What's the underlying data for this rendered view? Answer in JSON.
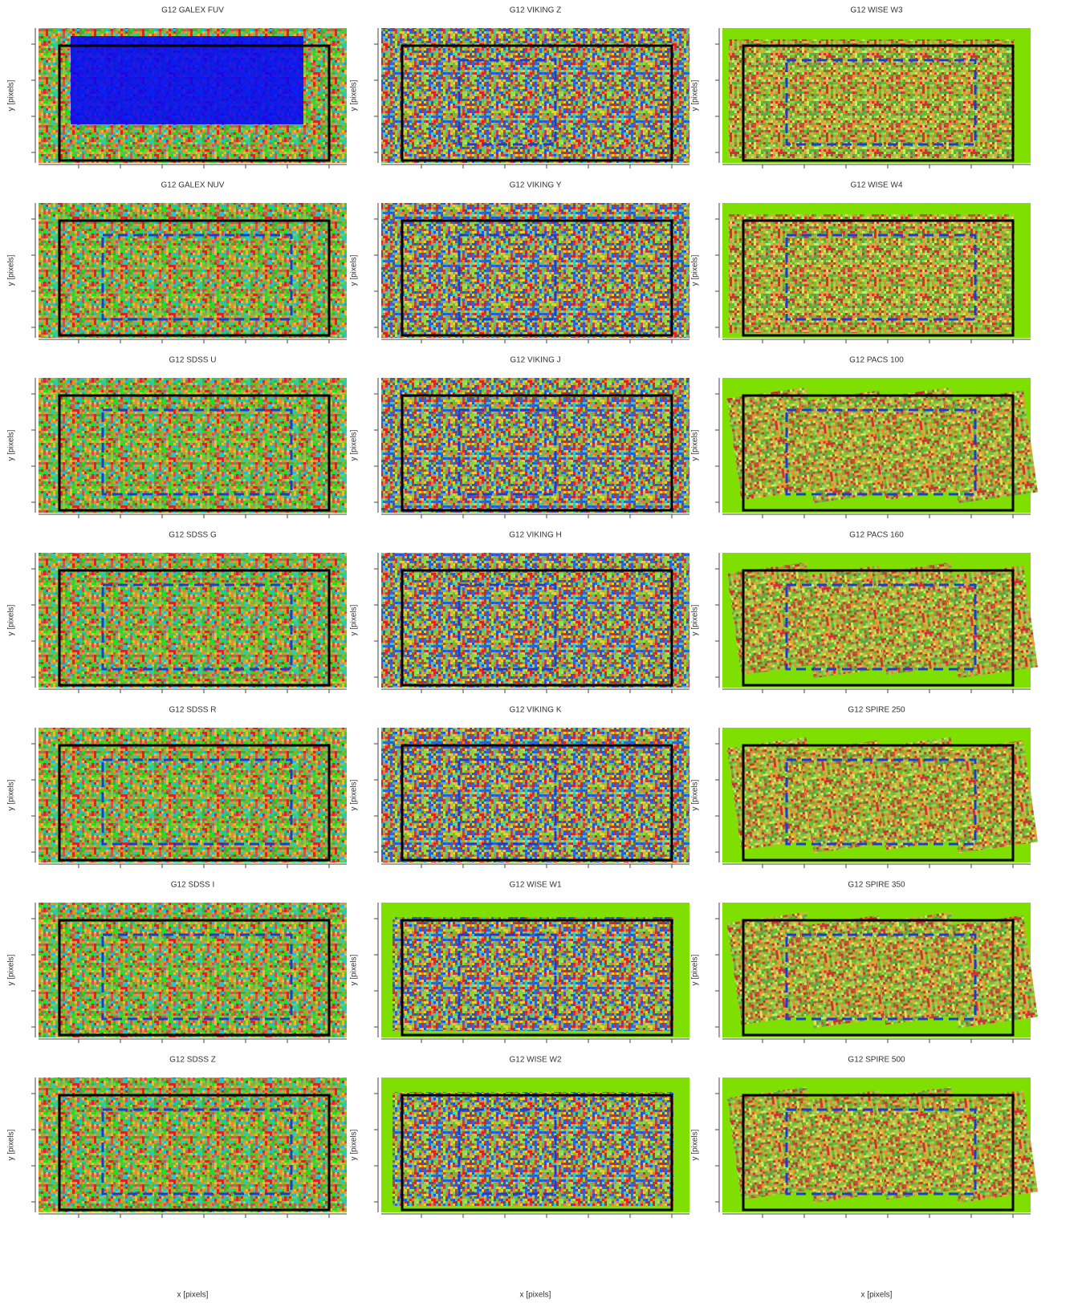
{
  "figure": {
    "y_axis_label": "y [pixels]",
    "x_axis_label": "x [pixels]",
    "panels": [
      {
        "title": "G12 GALEX FUV"
      },
      {
        "title": "G12 VIKING Z"
      },
      {
        "title": "G12 WISE W3"
      },
      {
        "title": "G12 GALEX NUV"
      },
      {
        "title": "G12 VIKING Y"
      },
      {
        "title": "G12 WISE W4"
      },
      {
        "title": "G12 SDSS U"
      },
      {
        "title": "G12 VIKING J"
      },
      {
        "title": "G12 PACS 100"
      },
      {
        "title": "G12 SDSS G"
      },
      {
        "title": "G12 VIKING H"
      },
      {
        "title": "G12 PACS 160"
      },
      {
        "title": "G12 SDSS R"
      },
      {
        "title": "G12 VIKING K"
      },
      {
        "title": "G12 SPIRE 250"
      },
      {
        "title": "G12 SDSS I"
      },
      {
        "title": "G12 WISE W1"
      },
      {
        "title": "G12 SPIRE 350"
      },
      {
        "title": "G12 SDSS Z"
      },
      {
        "title": "G12 WISE W2"
      },
      {
        "title": "G12 SPIRE 500"
      }
    ]
  }
}
